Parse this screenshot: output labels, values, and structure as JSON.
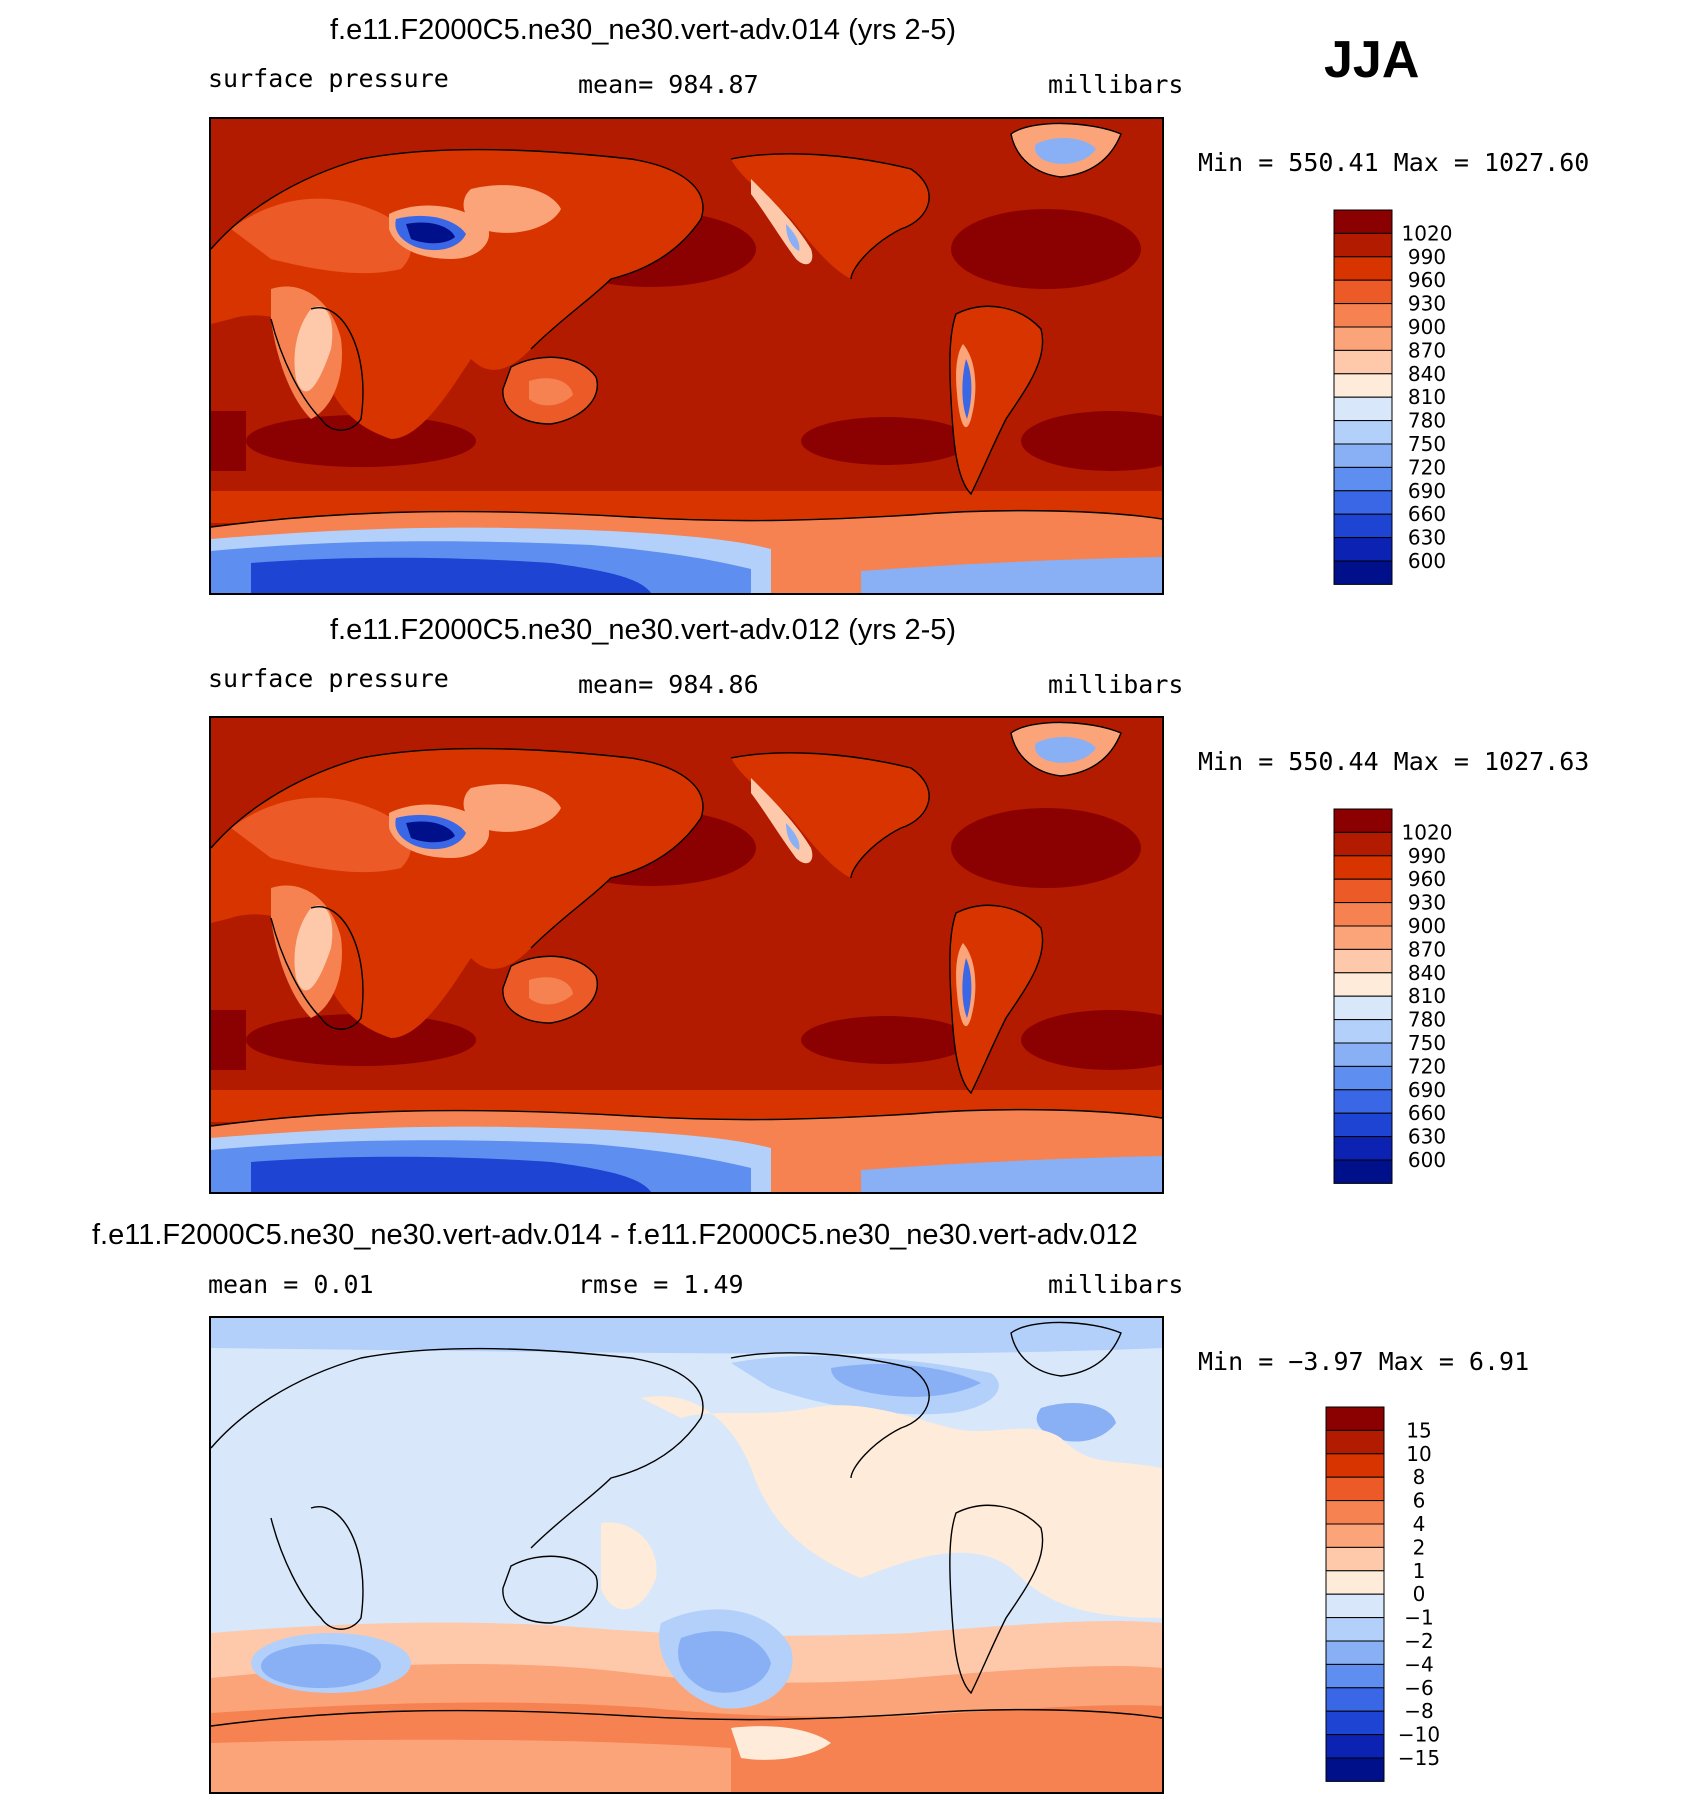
{
  "season": "JJA",
  "panels": [
    {
      "title": "f.e11.F2000C5.ne30_ne30.vert-adv.014 (yrs 2-5)",
      "variable": "surface pressure",
      "stat": "mean= 984.87",
      "units": "millibars",
      "minmax": "Min = 550.41 Max = 1027.60",
      "colorbar": {
        "labels": [
          "1020",
          "990",
          "960",
          "930",
          "900",
          "870",
          "840",
          "810",
          "780",
          "750",
          "720",
          "690",
          "660",
          "630",
          "600"
        ],
        "colors": [
          "#8b0000",
          "#b31b00",
          "#d83400",
          "#ec5a28",
          "#f58250",
          "#fba47a",
          "#fdc9aa",
          "#feebd9",
          "#d8e8fa",
          "#b2d0fa",
          "#89b0f5",
          "#5e8ef0",
          "#3a67e6",
          "#1d44d2",
          "#0b22b3",
          "#00108a"
        ]
      }
    },
    {
      "title": "f.e11.F2000C5.ne30_ne30.vert-adv.012 (yrs 2-5)",
      "variable": "surface pressure",
      "stat": "mean= 984.86",
      "units": "millibars",
      "minmax": "Min = 550.44 Max = 1027.63",
      "colorbar": {
        "labels": [
          "1020",
          "990",
          "960",
          "930",
          "900",
          "870",
          "840",
          "810",
          "780",
          "750",
          "720",
          "690",
          "660",
          "630",
          "600"
        ],
        "colors": [
          "#8b0000",
          "#b31b00",
          "#d83400",
          "#ec5a28",
          "#f58250",
          "#fba47a",
          "#fdc9aa",
          "#feebd9",
          "#d8e8fa",
          "#b2d0fa",
          "#89b0f5",
          "#5e8ef0",
          "#3a67e6",
          "#1d44d2",
          "#0b22b3",
          "#00108a"
        ]
      }
    },
    {
      "title": "f.e11.F2000C5.ne30_ne30.vert-adv.014 - f.e11.F2000C5.ne30_ne30.vert-adv.012",
      "mean": "mean = 0.01",
      "rmse": "rmse = 1.49",
      "units": "millibars",
      "minmax": "Min = −3.97 Max = 6.91",
      "colorbar": {
        "labels": [
          "15",
          "10",
          "8",
          "6",
          "4",
          "2",
          "1",
          "0",
          "−1",
          "−2",
          "−4",
          "−6",
          "−8",
          "−10",
          "−15"
        ],
        "colors": [
          "#8b0000",
          "#b31b00",
          "#d83400",
          "#ec5a28",
          "#f58250",
          "#fba47a",
          "#fdc9aa",
          "#feebd9",
          "#d8e8fa",
          "#b2d0fa",
          "#89b0f5",
          "#5e8ef0",
          "#3a67e6",
          "#1d44d2",
          "#0b22b3",
          "#00108a"
        ]
      }
    }
  ]
}
